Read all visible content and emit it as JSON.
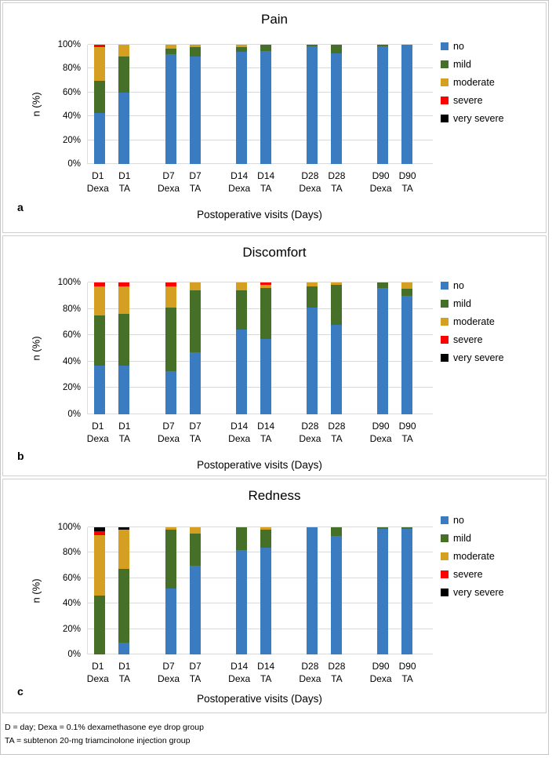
{
  "figure": {
    "footnotes": [
      "D = day; Dexa = 0.1% dexamethasone eye drop group",
      "TA = subtenon 20-mg triamcinolone injection group"
    ]
  },
  "chart_data": [
    {
      "type": "bar",
      "stacked": true,
      "title": "Pain",
      "panel_label": "a",
      "xlabel": "Postoperative visits (Days)",
      "ylabel": "n (%)",
      "ylim": [
        0,
        100
      ],
      "yticks": [
        "0%",
        "20%",
        "40%",
        "60%",
        "80%",
        "100%"
      ],
      "grid": true,
      "legend_position": "right",
      "categories": [
        "D1 Dexa",
        "D1 TA",
        "D7 Dexa",
        "D7 TA",
        "D14 Dexa",
        "D14 TA",
        "D28 Dexa",
        "D28 TA",
        "D90 Dexa",
        "D90 TA"
      ],
      "category_lines": [
        [
          "D1",
          "Dexa"
        ],
        [
          "D1",
          "TA"
        ],
        [
          "D7",
          "Dexa"
        ],
        [
          "D7",
          "TA"
        ],
        [
          "D14",
          "Dexa"
        ],
        [
          "D14",
          "TA"
        ],
        [
          "D28",
          "Dexa"
        ],
        [
          "D28",
          "TA"
        ],
        [
          "D90",
          "Dexa"
        ],
        [
          "D90",
          "TA"
        ]
      ],
      "series": [
        {
          "name": "no",
          "color": "#3A7CBF",
          "values": [
            43,
            60,
            92,
            90,
            94,
            95,
            99,
            93,
            99,
            100
          ]
        },
        {
          "name": "mild",
          "color": "#466F28",
          "values": [
            27,
            30,
            5,
            8,
            4,
            5,
            1,
            7,
            1,
            0
          ]
        },
        {
          "name": "moderate",
          "color": "#D5A021",
          "values": [
            28,
            10,
            3,
            2,
            2,
            0,
            0,
            0,
            0,
            0
          ]
        },
        {
          "name": "severe",
          "color": "#FF0000",
          "values": [
            2,
            0,
            0,
            0,
            0,
            0,
            0,
            0,
            0,
            0
          ]
        },
        {
          "name": "very severe",
          "color": "#000000",
          "values": [
            0,
            0,
            0,
            0,
            0,
            0,
            0,
            0,
            0,
            0
          ]
        }
      ]
    },
    {
      "type": "bar",
      "stacked": true,
      "title": "Discomfort",
      "panel_label": "b",
      "xlabel": "Postoperative visits (Days)",
      "ylabel": "n (%)",
      "ylim": [
        0,
        100
      ],
      "yticks": [
        "0%",
        "20%",
        "40%",
        "60%",
        "80%",
        "100%"
      ],
      "grid": true,
      "legend_position": "right",
      "categories": [
        "D1 Dexa",
        "D1 TA",
        "D7 Dexa",
        "D7 TA",
        "D14 Dexa",
        "D14 TA",
        "D28 Dexa",
        "D28 TA",
        "D90 Dexa",
        "D90 TA"
      ],
      "category_lines": [
        [
          "D1",
          "Dexa"
        ],
        [
          "D1",
          "TA"
        ],
        [
          "D7",
          "Dexa"
        ],
        [
          "D7",
          "TA"
        ],
        [
          "D14",
          "Dexa"
        ],
        [
          "D14",
          "TA"
        ],
        [
          "D28",
          "Dexa"
        ],
        [
          "D28",
          "TA"
        ],
        [
          "D90",
          "Dexa"
        ],
        [
          "D90",
          "TA"
        ]
      ],
      "series": [
        {
          "name": "no",
          "color": "#3A7CBF",
          "values": [
            37,
            37,
            33,
            47,
            64,
            57,
            81,
            68,
            96,
            90
          ]
        },
        {
          "name": "mild",
          "color": "#466F28",
          "values": [
            38,
            39,
            48,
            47,
            30,
            39,
            16,
            30,
            4,
            5
          ]
        },
        {
          "name": "moderate",
          "color": "#D5A021",
          "values": [
            22,
            21,
            16,
            6,
            6,
            2,
            3,
            2,
            0,
            5
          ]
        },
        {
          "name": "severe",
          "color": "#FF0000",
          "values": [
            3,
            3,
            3,
            0,
            0,
            2,
            0,
            0,
            0,
            0
          ]
        },
        {
          "name": "very severe",
          "color": "#000000",
          "values": [
            0,
            0,
            0,
            0,
            0,
            0,
            0,
            0,
            0,
            0
          ]
        }
      ]
    },
    {
      "type": "bar",
      "stacked": true,
      "title": "Redness",
      "panel_label": "c",
      "xlabel": "Postoperative visits (Days)",
      "ylabel": "n (%)",
      "ylim": [
        0,
        100
      ],
      "yticks": [
        "0%",
        "20%",
        "40%",
        "60%",
        "80%",
        "100%"
      ],
      "grid": true,
      "legend_position": "right",
      "categories": [
        "D1 Dexa",
        "D1 TA",
        "D7 Dexa",
        "D7 TA",
        "D14 Dexa",
        "D14 TA",
        "D28 Dexa",
        "D28 TA",
        "D90 Dexa",
        "D90 TA"
      ],
      "category_lines": [
        [
          "D1",
          "Dexa"
        ],
        [
          "D1",
          "TA"
        ],
        [
          "D7",
          "Dexa"
        ],
        [
          "D7",
          "TA"
        ],
        [
          "D14",
          "Dexa"
        ],
        [
          "D14",
          "TA"
        ],
        [
          "D28",
          "Dexa"
        ],
        [
          "D28",
          "TA"
        ],
        [
          "D90",
          "Dexa"
        ],
        [
          "D90",
          "TA"
        ]
      ],
      "series": [
        {
          "name": "no",
          "color": "#3A7CBF",
          "values": [
            0,
            9,
            52,
            70,
            82,
            84,
            100,
            93,
            99,
            99
          ]
        },
        {
          "name": "mild",
          "color": "#466F28",
          "values": [
            46,
            58,
            46,
            25,
            18,
            14,
            0,
            7,
            1,
            1
          ]
        },
        {
          "name": "moderate",
          "color": "#D5A021",
          "values": [
            48,
            31,
            2,
            5,
            0,
            2,
            0,
            0,
            0,
            0
          ]
        },
        {
          "name": "severe",
          "color": "#FF0000",
          "values": [
            3,
            0,
            0,
            0,
            0,
            0,
            0,
            0,
            0,
            0
          ]
        },
        {
          "name": "very severe",
          "color": "#000000",
          "values": [
            3,
            2,
            0,
            0,
            0,
            0,
            0,
            0,
            0,
            0
          ]
        }
      ]
    }
  ]
}
